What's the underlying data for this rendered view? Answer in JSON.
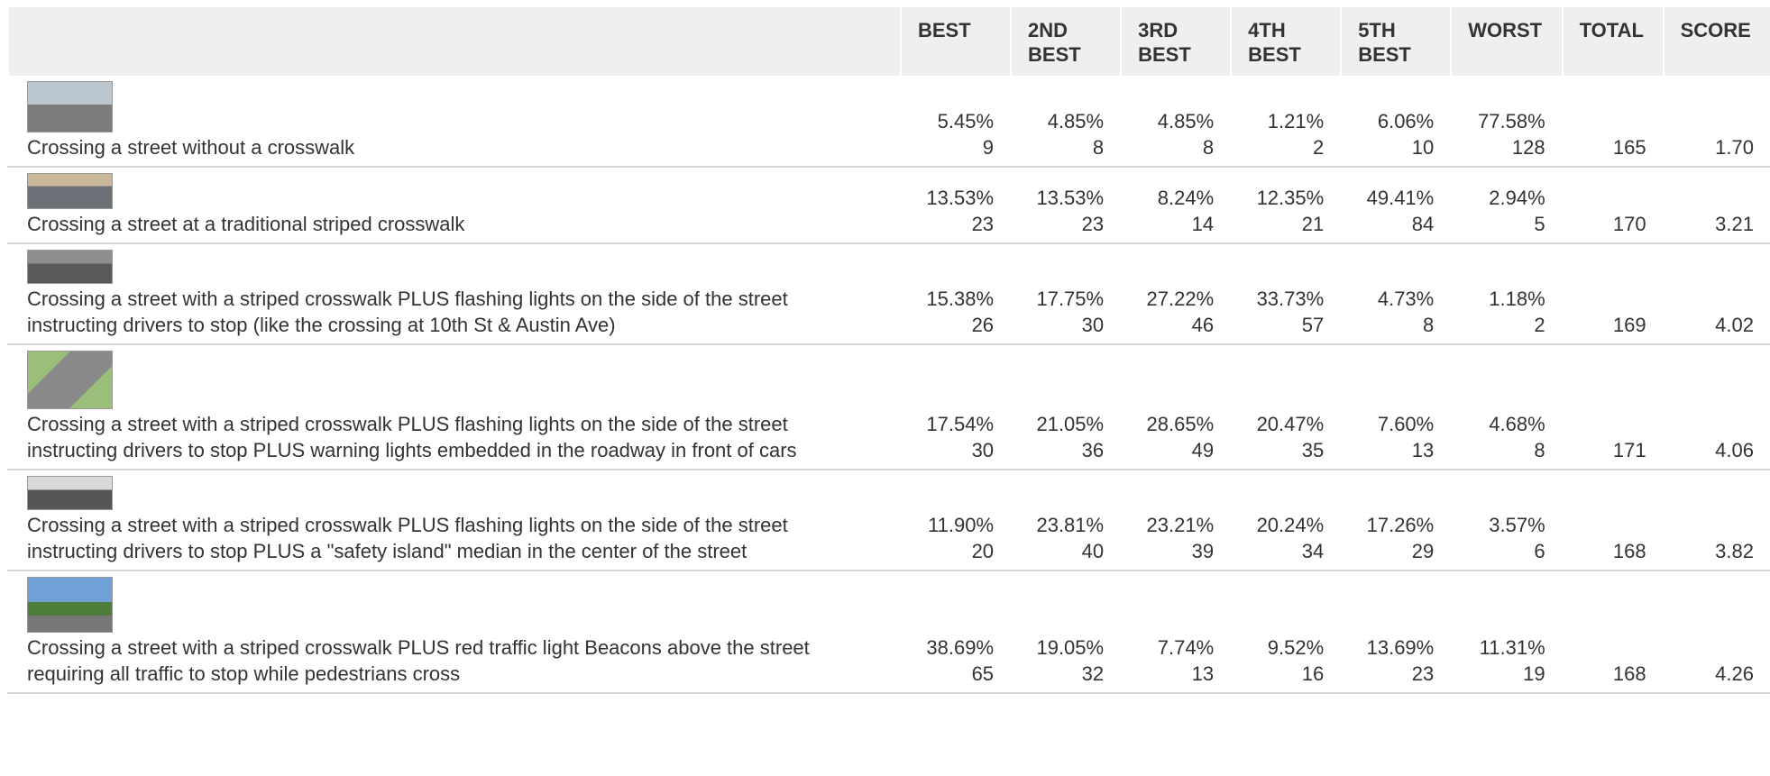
{
  "table": {
    "columns": [
      "BEST",
      "2ND BEST",
      "3RD BEST",
      "4TH BEST",
      "5TH BEST",
      "WORST",
      "TOTAL",
      "SCORE"
    ],
    "rows": [
      {
        "label": "Crossing a street without a crosswalk",
        "cells": [
          {
            "percent": "5.45%",
            "count": 9
          },
          {
            "percent": "4.85%",
            "count": 8
          },
          {
            "percent": "4.85%",
            "count": 8
          },
          {
            "percent": "1.21%",
            "count": 2
          },
          {
            "percent": "6.06%",
            "count": 10
          },
          {
            "percent": "77.58%",
            "count": 128
          }
        ],
        "total": 165,
        "score": "1.70"
      },
      {
        "label": "Crossing a street at a traditional striped crosswalk",
        "cells": [
          {
            "percent": "13.53%",
            "count": 23
          },
          {
            "percent": "13.53%",
            "count": 23
          },
          {
            "percent": "8.24%",
            "count": 14
          },
          {
            "percent": "12.35%",
            "count": 21
          },
          {
            "percent": "49.41%",
            "count": 84
          },
          {
            "percent": "2.94%",
            "count": 5
          }
        ],
        "total": 170,
        "score": "3.21"
      },
      {
        "label": "Crossing a street with a striped crosswalk PLUS flashing lights on the side of the street instructing drivers to stop (like the crossing at 10th St & Austin Ave)",
        "cells": [
          {
            "percent": "15.38%",
            "count": 26
          },
          {
            "percent": "17.75%",
            "count": 30
          },
          {
            "percent": "27.22%",
            "count": 46
          },
          {
            "percent": "33.73%",
            "count": 57
          },
          {
            "percent": "4.73%",
            "count": 8
          },
          {
            "percent": "1.18%",
            "count": 2
          }
        ],
        "total": 169,
        "score": "4.02"
      },
      {
        "label": "Crossing a street with a striped crosswalk PLUS flashing lights on the side of the street instructing drivers to stop PLUS warning lights embedded in the roadway in front of cars",
        "cells": [
          {
            "percent": "17.54%",
            "count": 30
          },
          {
            "percent": "21.05%",
            "count": 36
          },
          {
            "percent": "28.65%",
            "count": 49
          },
          {
            "percent": "20.47%",
            "count": 35
          },
          {
            "percent": "7.60%",
            "count": 13
          },
          {
            "percent": "4.68%",
            "count": 8
          }
        ],
        "total": 171,
        "score": "4.06"
      },
      {
        "label": "Crossing a street with a striped crosswalk PLUS flashing lights on the side of the street instructing drivers to stop PLUS a \"safety island\" median in the center of the street",
        "cells": [
          {
            "percent": "11.90%",
            "count": 20
          },
          {
            "percent": "23.81%",
            "count": 40
          },
          {
            "percent": "23.21%",
            "count": 39
          },
          {
            "percent": "20.24%",
            "count": 34
          },
          {
            "percent": "17.26%",
            "count": 29
          },
          {
            "percent": "3.57%",
            "count": 6
          }
        ],
        "total": 168,
        "score": "3.82"
      },
      {
        "label": "Crossing a street with a striped crosswalk PLUS red traffic light Beacons above the street requiring all traffic to stop while pedestrians cross",
        "cells": [
          {
            "percent": "38.69%",
            "count": 65
          },
          {
            "percent": "19.05%",
            "count": 32
          },
          {
            "percent": "7.74%",
            "count": 13
          },
          {
            "percent": "9.52%",
            "count": 16
          },
          {
            "percent": "13.69%",
            "count": 23
          },
          {
            "percent": "11.31%",
            "count": 19
          }
        ],
        "total": 168,
        "score": "4.26"
      }
    ]
  }
}
